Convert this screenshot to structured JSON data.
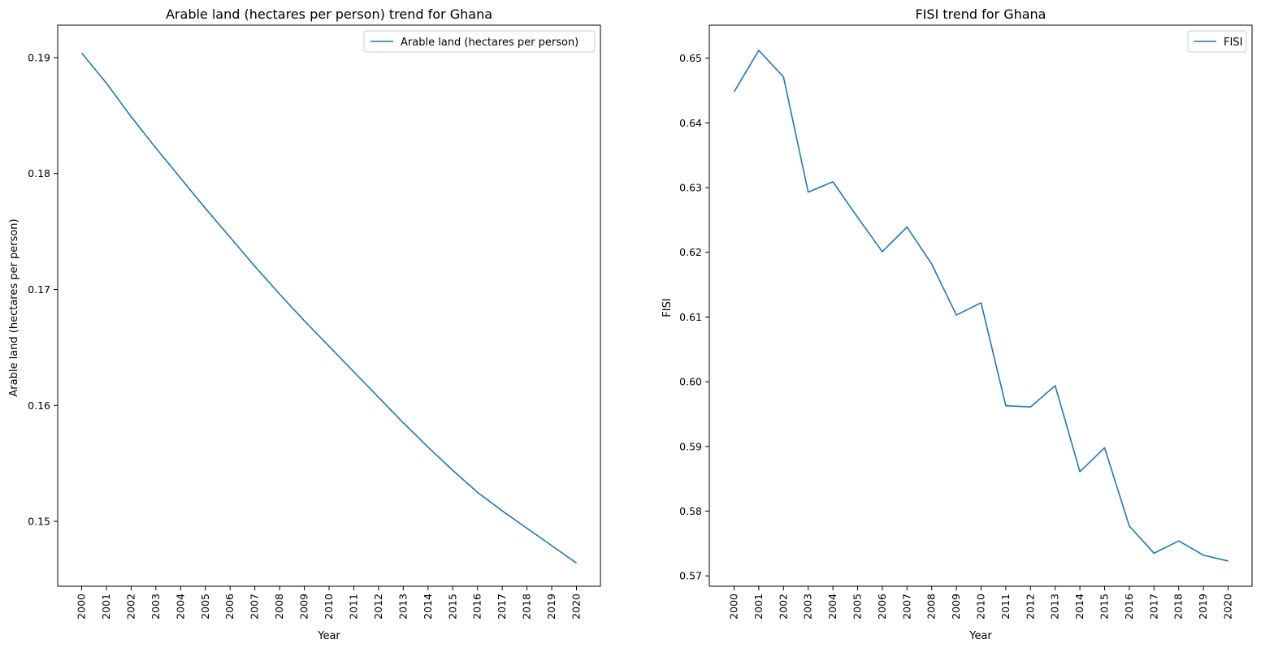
{
  "chart_data": [
    {
      "type": "line",
      "title": "Arable land (hectares per person) trend for Ghana",
      "xlabel": "Year",
      "ylabel": "Arable land (hectares per person)",
      "x": [
        "2000",
        "2001",
        "2002",
        "2003",
        "2004",
        "2005",
        "2006",
        "2007",
        "2008",
        "2009",
        "2010",
        "2011",
        "2012",
        "2013",
        "2014",
        "2015",
        "2016",
        "2017",
        "2018",
        "2019",
        "2020"
      ],
      "yticks": [
        "0.15",
        "0.16",
        "0.17",
        "0.18",
        "0.19"
      ],
      "ylim": [
        0.1444,
        0.1928
      ],
      "grid": false,
      "legend_position": "top-right",
      "color": "#1f77b4",
      "series": [
        {
          "name": "Arable land (hectares per person)",
          "values": [
            0.1904,
            0.1878,
            0.1849,
            0.1822,
            0.1796,
            0.177,
            0.1745,
            0.172,
            0.1696,
            0.1673,
            0.1651,
            0.1629,
            0.1607,
            0.1585,
            0.1564,
            0.1544,
            0.1525,
            0.1509,
            0.1494,
            0.1479,
            0.1464
          ]
        }
      ]
    },
    {
      "type": "line",
      "title": "FISI trend for Ghana",
      "xlabel": "Year",
      "ylabel": "FISI",
      "x": [
        "2000",
        "2001",
        "2002",
        "2003",
        "2004",
        "2005",
        "2006",
        "2007",
        "2008",
        "2009",
        "2010",
        "2011",
        "2012",
        "2013",
        "2014",
        "2015",
        "2016",
        "2017",
        "2018",
        "2019",
        "2020"
      ],
      "yticks": [
        "0.57",
        "0.58",
        "0.59",
        "0.60",
        "0.61",
        "0.62",
        "0.63",
        "0.64",
        "0.65"
      ],
      "ylim": [
        0.5684,
        0.6551
      ],
      "grid": false,
      "legend_position": "top-right",
      "color": "#1f77b4",
      "series": [
        {
          "name": "FISI",
          "values": [
            0.6448,
            0.6512,
            0.6471,
            0.6293,
            0.6309,
            0.6254,
            0.6201,
            0.6239,
            0.6182,
            0.6103,
            0.6122,
            0.5963,
            0.5961,
            0.5994,
            0.5861,
            0.5898,
            0.5777,
            0.5735,
            0.5754,
            0.5732,
            0.5723
          ]
        }
      ]
    }
  ]
}
